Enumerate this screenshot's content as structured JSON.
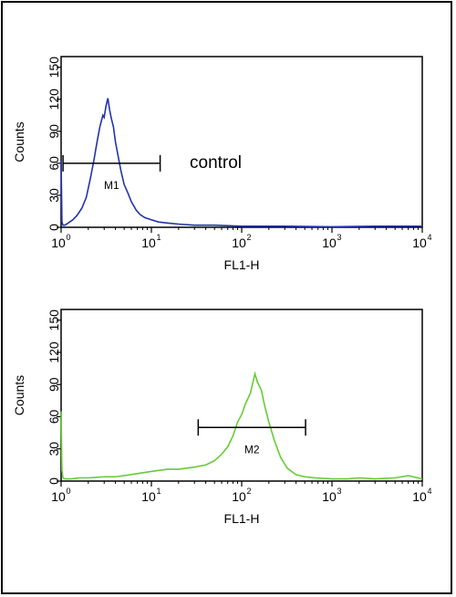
{
  "colors": {
    "control": "#2233aa",
    "sample": "#66cc33",
    "axis": "#000000"
  },
  "chart_data": [
    {
      "type": "line",
      "name": "control-histogram",
      "xlabel": "FL1-H",
      "ylabel": "Counts",
      "x_scale": "log",
      "xlim": [
        1,
        10000
      ],
      "ylim": [
        0,
        160
      ],
      "y_ticks": [
        0,
        30,
        60,
        90,
        120,
        150
      ],
      "x_ticks": [
        {
          "base": "10",
          "exp": "0"
        },
        {
          "base": "10",
          "exp": "1"
        },
        {
          "base": "10",
          "exp": "2"
        },
        {
          "base": "10",
          "exp": "3"
        },
        {
          "base": "10",
          "exp": "4"
        }
      ],
      "annotation": "control",
      "marker": {
        "label": "M1",
        "x_start": 1.05,
        "x_end": 12.5,
        "y": 60
      },
      "color": "#2233aa",
      "series": [
        {
          "x": [
            1.0,
            1.02,
            1.05,
            1.1,
            1.2,
            1.35,
            1.5,
            1.7,
            1.9,
            2.1,
            2.3,
            2.5,
            2.7,
            2.9,
            3.0,
            3.15,
            3.3,
            3.45,
            3.6,
            3.8,
            4.0,
            4.3,
            4.6,
            5.0,
            5.5,
            6.0,
            6.8,
            7.5,
            8.5,
            10,
            12,
            15,
            20,
            30,
            50,
            100,
            300,
            1000,
            3000,
            10000
          ],
          "y": [
            62,
            5,
            2,
            2,
            4,
            7,
            11,
            18,
            28,
            45,
            62,
            80,
            95,
            105,
            103,
            114,
            121,
            110,
            102,
            94,
            80,
            66,
            53,
            40,
            32,
            24,
            16,
            12,
            9,
            7,
            5,
            4,
            3,
            2,
            2,
            1,
            1,
            0.5,
            1,
            1
          ]
        }
      ]
    },
    {
      "type": "line",
      "name": "sample-histogram",
      "xlabel": "FL1-H",
      "ylabel": "Counts",
      "x_scale": "log",
      "xlim": [
        1,
        10000
      ],
      "ylim": [
        0,
        160
      ],
      "y_ticks": [
        0,
        30,
        60,
        90,
        120,
        150
      ],
      "x_ticks": [
        {
          "base": "10",
          "exp": "0"
        },
        {
          "base": "10",
          "exp": "1"
        },
        {
          "base": "10",
          "exp": "2"
        },
        {
          "base": "10",
          "exp": "3"
        },
        {
          "base": "10",
          "exp": "4"
        }
      ],
      "marker": {
        "label": "M2",
        "x_start": 33,
        "x_end": 510,
        "y": 50
      },
      "color": "#66cc33",
      "series": [
        {
          "x": [
            1.0,
            1.02,
            1.05,
            1.1,
            1.3,
            1.6,
            2,
            3,
            4,
            5,
            7,
            10,
            15,
            20,
            30,
            40,
            50,
            60,
            70,
            80,
            90,
            100,
            110,
            125,
            140,
            150,
            165,
            180,
            200,
            230,
            270,
            320,
            400,
            500,
            650,
            1000,
            1500,
            2000,
            3000,
            5000,
            7000,
            10000
          ],
          "y": [
            65,
            10,
            3,
            2,
            2,
            3,
            3,
            4,
            4,
            5,
            7,
            9,
            11,
            11,
            13,
            15,
            19,
            25,
            32,
            42,
            55,
            62,
            72,
            82,
            100,
            92,
            85,
            70,
            55,
            38,
            22,
            12,
            6,
            4,
            3,
            2,
            2,
            3,
            2,
            3,
            5,
            2
          ]
        }
      ]
    }
  ]
}
